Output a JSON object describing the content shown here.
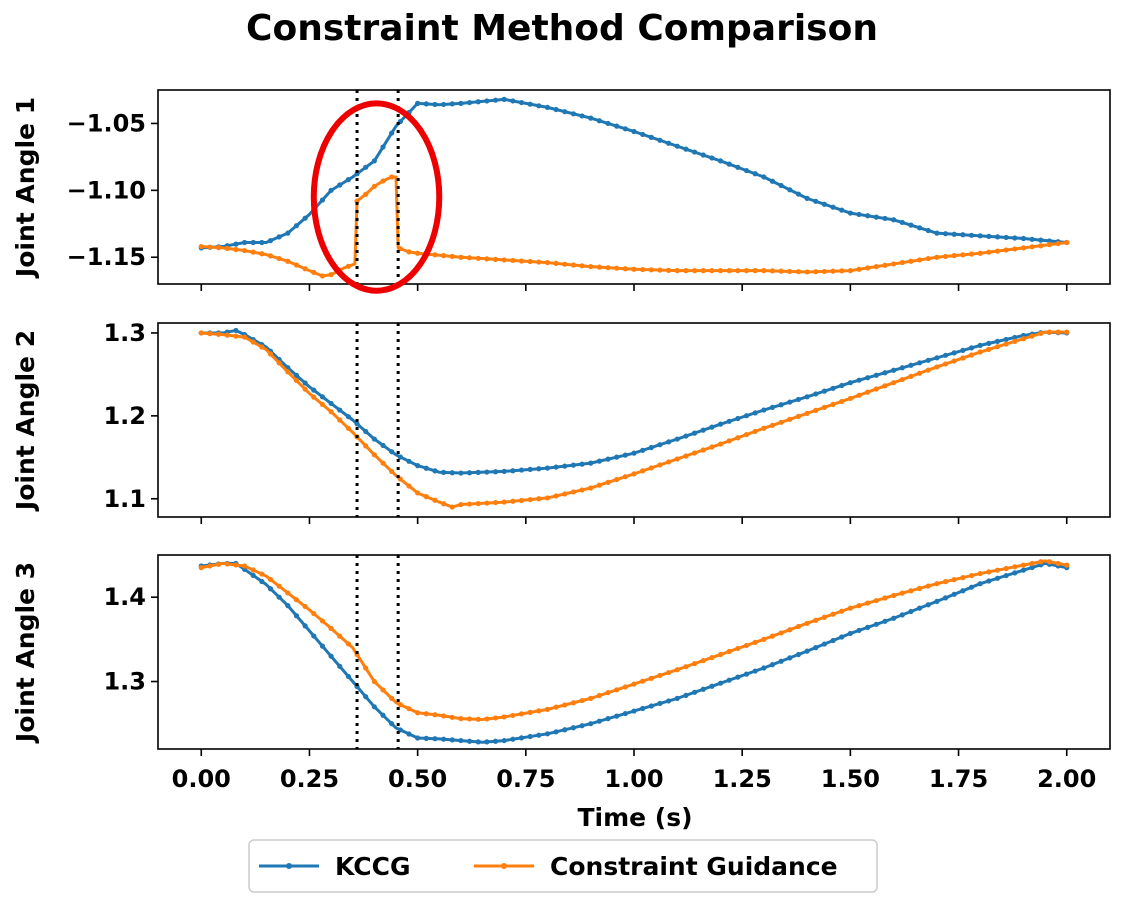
{
  "chart_data": {
    "type": "line",
    "title": "Constraint Method Comparison",
    "xlabel": "Time (s)",
    "xlim": [
      -0.1,
      2.1
    ],
    "x_ticks": [
      0.0,
      0.25,
      0.5,
      0.75,
      1.0,
      1.25,
      1.5,
      1.75,
      2.0
    ],
    "x_tick_labels": [
      "0.00",
      "0.25",
      "0.50",
      "0.75",
      "1.00",
      "1.25",
      "1.50",
      "1.75",
      "2.00"
    ],
    "constraint_window": [
      0.36,
      0.455
    ],
    "highlight_ellipse": {
      "center": [
        0.405,
        -1.105
      ],
      "width_s": 0.29,
      "height": 0.14,
      "color": "#ee0000"
    },
    "colors": {
      "KCCG": "#1f77b4",
      "Constraint Guidance": "#ff7f0e"
    },
    "legend": [
      "KCCG",
      "Constraint Guidance"
    ],
    "legend_position": "bottom-center",
    "subplots": [
      {
        "ylabel": "Joint Angle 1",
        "ylim": [
          -1.17,
          -1.025
        ],
        "y_ticks": [
          -1.05,
          -1.1,
          -1.15
        ],
        "y_tick_labels": [
          "−1.05",
          "−1.10",
          "−1.15"
        ],
        "series": [
          {
            "name": "KCCG",
            "x": [
              0.0,
              0.05,
              0.1,
              0.15,
              0.2,
              0.25,
              0.3,
              0.35,
              0.4,
              0.45,
              0.5,
              0.55,
              0.6,
              0.7,
              0.8,
              0.9,
              1.0,
              1.1,
              1.2,
              1.3,
              1.4,
              1.5,
              1.6,
              1.7,
              1.8,
              1.9,
              2.0
            ],
            "y": [
              -1.143,
              -1.142,
              -1.139,
              -1.139,
              -1.132,
              -1.118,
              -1.1,
              -1.09,
              -1.078,
              -1.052,
              -1.035,
              -1.036,
              -1.035,
              -1.032,
              -1.038,
              -1.046,
              -1.056,
              -1.067,
              -1.078,
              -1.09,
              -1.106,
              -1.117,
              -1.122,
              -1.132,
              -1.134,
              -1.136,
              -1.139
            ]
          },
          {
            "name": "Constraint Guidance",
            "x": [
              0.0,
              0.05,
              0.1,
              0.15,
              0.2,
              0.25,
              0.28,
              0.3,
              0.33,
              0.355,
              0.36,
              0.38,
              0.4,
              0.42,
              0.44,
              0.45,
              0.455,
              0.48,
              0.5,
              0.6,
              0.7,
              0.8,
              0.9,
              1.0,
              1.1,
              1.2,
              1.3,
              1.4,
              1.5,
              1.6,
              1.7,
              1.8,
              1.9,
              2.0
            ],
            "y": [
              -1.142,
              -1.143,
              -1.145,
              -1.148,
              -1.153,
              -1.16,
              -1.164,
              -1.163,
              -1.158,
              -1.155,
              -1.108,
              -1.103,
              -1.097,
              -1.093,
              -1.09,
              -1.09,
              -1.143,
              -1.146,
              -1.147,
              -1.15,
              -1.152,
              -1.154,
              -1.157,
              -1.159,
              -1.16,
              -1.16,
              -1.16,
              -1.161,
              -1.16,
              -1.155,
              -1.15,
              -1.147,
              -1.143,
              -1.139
            ]
          }
        ]
      },
      {
        "ylabel": "Joint Angle 2",
        "ylim": [
          1.078,
          1.312
        ],
        "y_ticks": [
          1.3,
          1.2,
          1.1
        ],
        "y_tick_labels": [
          "1.3",
          "1.2",
          "1.1"
        ],
        "series": [
          {
            "name": "KCCG",
            "x": [
              0.0,
              0.05,
              0.08,
              0.1,
              0.15,
              0.2,
              0.25,
              0.3,
              0.35,
              0.4,
              0.45,
              0.5,
              0.55,
              0.6,
              0.7,
              0.8,
              0.9,
              1.0,
              1.1,
              1.2,
              1.3,
              1.4,
              1.5,
              1.6,
              1.7,
              1.8,
              1.9,
              1.95,
              2.0
            ],
            "y": [
              1.3,
              1.3,
              1.303,
              1.298,
              1.283,
              1.258,
              1.235,
              1.215,
              1.195,
              1.172,
              1.153,
              1.14,
              1.132,
              1.131,
              1.133,
              1.137,
              1.143,
              1.155,
              1.172,
              1.19,
              1.207,
              1.223,
              1.24,
              1.255,
              1.27,
              1.285,
              1.297,
              1.301,
              1.3
            ]
          },
          {
            "name": "Constraint Guidance",
            "x": [
              0.0,
              0.05,
              0.1,
              0.15,
              0.2,
              0.25,
              0.3,
              0.35,
              0.4,
              0.45,
              0.5,
              0.55,
              0.58,
              0.6,
              0.7,
              0.8,
              0.9,
              1.0,
              1.1,
              1.2,
              1.3,
              1.4,
              1.5,
              1.6,
              1.7,
              1.8,
              1.9,
              1.95,
              2.0
            ],
            "y": [
              1.3,
              1.298,
              1.295,
              1.28,
              1.253,
              1.227,
              1.205,
              1.18,
              1.153,
              1.128,
              1.107,
              1.096,
              1.09,
              1.093,
              1.096,
              1.101,
              1.113,
              1.13,
              1.148,
              1.166,
              1.185,
              1.203,
              1.221,
              1.24,
              1.259,
              1.277,
              1.293,
              1.301,
              1.301
            ]
          }
        ]
      },
      {
        "ylabel": "Joint Angle 3",
        "ylim": [
          1.22,
          1.45
        ],
        "y_ticks": [
          1.4,
          1.3
        ],
        "y_tick_labels": [
          "1.4",
          "1.3"
        ],
        "series": [
          {
            "name": "KCCG",
            "x": [
              0.0,
              0.05,
              0.08,
              0.1,
              0.15,
              0.2,
              0.25,
              0.3,
              0.35,
              0.4,
              0.45,
              0.5,
              0.55,
              0.6,
              0.65,
              0.7,
              0.8,
              0.9,
              1.0,
              1.1,
              1.2,
              1.3,
              1.4,
              1.5,
              1.6,
              1.7,
              1.8,
              1.9,
              1.95,
              2.0
            ],
            "y": [
              1.437,
              1.44,
              1.44,
              1.433,
              1.415,
              1.39,
              1.36,
              1.33,
              1.3,
              1.27,
              1.245,
              1.233,
              1.232,
              1.23,
              1.228,
              1.23,
              1.238,
              1.25,
              1.265,
              1.28,
              1.298,
              1.316,
              1.336,
              1.357,
              1.375,
              1.395,
              1.416,
              1.432,
              1.44,
              1.435
            ]
          },
          {
            "name": "Constraint Guidance",
            "x": [
              0.0,
              0.05,
              0.1,
              0.15,
              0.2,
              0.25,
              0.3,
              0.35,
              0.4,
              0.45,
              0.5,
              0.55,
              0.6,
              0.65,
              0.7,
              0.8,
              0.9,
              1.0,
              1.1,
              1.2,
              1.3,
              1.4,
              1.5,
              1.6,
              1.7,
              1.8,
              1.9,
              1.95,
              2.0
            ],
            "y": [
              1.435,
              1.44,
              1.437,
              1.425,
              1.405,
              1.385,
              1.363,
              1.34,
              1.3,
              1.275,
              1.263,
              1.26,
              1.256,
              1.255,
              1.258,
              1.267,
              1.28,
              1.297,
              1.314,
              1.332,
              1.35,
              1.369,
              1.387,
              1.402,
              1.416,
              1.428,
              1.438,
              1.443,
              1.438
            ]
          }
        ]
      }
    ]
  }
}
